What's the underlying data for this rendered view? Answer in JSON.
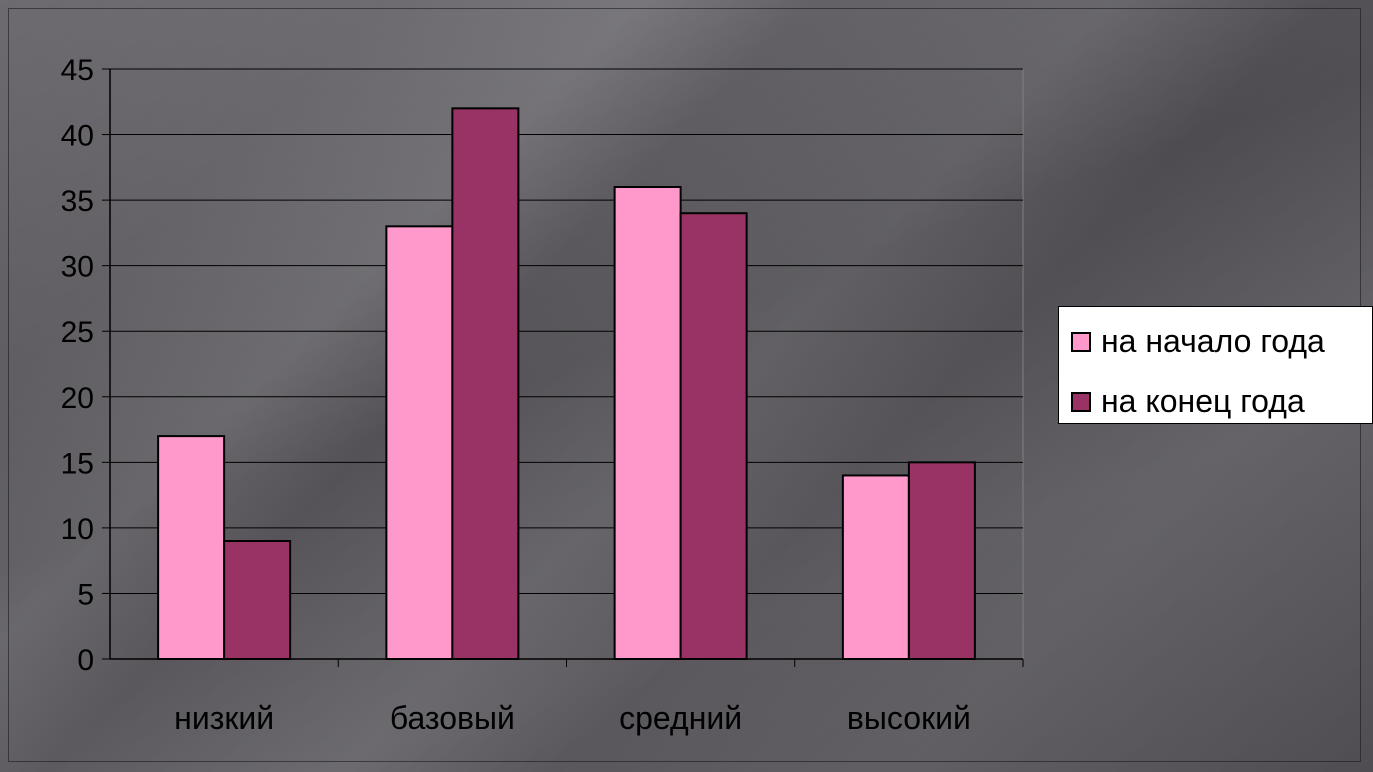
{
  "chart_data": {
    "type": "bar",
    "categories": [
      "низкий",
      "базовый",
      "средний",
      "высокий"
    ],
    "series": [
      {
        "name": "на начало года",
        "values": [
          17,
          33,
          36,
          14
        ],
        "color": "#ff99cc"
      },
      {
        "name": "на конец года",
        "values": [
          9,
          42,
          34,
          15
        ],
        "color": "#993366"
      }
    ],
    "ylim": [
      0,
      45
    ],
    "yticks": [
      0,
      5,
      10,
      15,
      20,
      25,
      30,
      35,
      40,
      45
    ],
    "grid": true,
    "legend_position": "right",
    "title": "",
    "xlabel": "",
    "ylabel": ""
  }
}
